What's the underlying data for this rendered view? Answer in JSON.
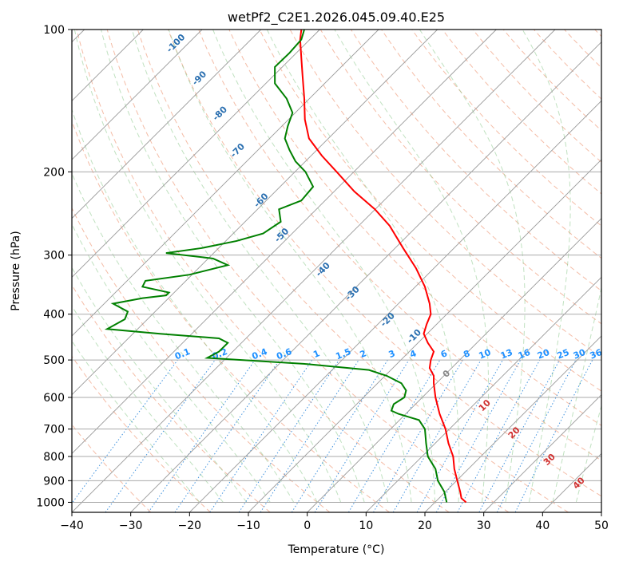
{
  "chart_data": {
    "type": "line",
    "title": "wetPf2_C2E1.2026.045.09.40.E25",
    "xlabel": "Temperature (°C)",
    "ylabel": "Pressure (hPa)",
    "xlim": [
      -40,
      50
    ],
    "ylim": [
      1050,
      100
    ],
    "y_scale": "log",
    "grid": true,
    "x_ticks": [
      -40,
      -30,
      -20,
      -10,
      0,
      10,
      20,
      30,
      40,
      50
    ],
    "y_ticks": [
      100,
      200,
      300,
      400,
      500,
      600,
      700,
      800,
      900,
      1000
    ],
    "series": [
      {
        "color": "#ff0000",
        "points": [
          [
            27,
            1000
          ],
          [
            26.2,
            980
          ],
          [
            26,
            950
          ],
          [
            25.5,
            900
          ],
          [
            25,
            850
          ],
          [
            24.8,
            800
          ],
          [
            24,
            750
          ],
          [
            23.5,
            700
          ],
          [
            22.5,
            650
          ],
          [
            21.8,
            600
          ],
          [
            21.5,
            560
          ],
          [
            21.5,
            540
          ],
          [
            20.8,
            520
          ],
          [
            21,
            500
          ],
          [
            21.5,
            480
          ],
          [
            20.5,
            460
          ],
          [
            19.8,
            440
          ],
          [
            20.3,
            420
          ],
          [
            21,
            400
          ],
          [
            20.8,
            380
          ],
          [
            20,
            350
          ],
          [
            18.5,
            320
          ],
          [
            16.3,
            290
          ],
          [
            14,
            260
          ],
          [
            11.5,
            240
          ],
          [
            8,
            220
          ],
          [
            5,
            200
          ],
          [
            2.5,
            185
          ],
          [
            0.3,
            170
          ],
          [
            -0.4,
            155
          ],
          [
            -0.5,
            140
          ],
          [
            -0.8,
            125
          ],
          [
            -1,
            115
          ],
          [
            -1.2,
            105
          ],
          [
            -1,
            100
          ]
        ]
      },
      {
        "color": "#008000",
        "points": [
          [
            23.7,
            1000
          ],
          [
            23.3,
            950
          ],
          [
            22.2,
            900
          ],
          [
            21.8,
            850
          ],
          [
            20.5,
            800
          ],
          [
            20.2,
            750
          ],
          [
            20,
            700
          ],
          [
            19,
            670
          ],
          [
            15.5,
            650
          ],
          [
            14.3,
            640
          ],
          [
            14.7,
            620
          ],
          [
            16.5,
            600
          ],
          [
            16.8,
            580
          ],
          [
            16,
            560
          ],
          [
            13.5,
            540
          ],
          [
            10.5,
            525
          ],
          [
            0,
            510
          ],
          [
            -17,
            495
          ],
          [
            -15,
            480
          ],
          [
            -13.5,
            460
          ],
          [
            -15,
            450
          ],
          [
            -25,
            440
          ],
          [
            -34,
            430
          ],
          [
            -31,
            410
          ],
          [
            -30.5,
            395
          ],
          [
            -33,
            380
          ],
          [
            -28,
            370
          ],
          [
            -24,
            365
          ],
          [
            -23.5,
            360
          ],
          [
            -28,
            350
          ],
          [
            -27.5,
            340
          ],
          [
            -20,
            330
          ],
          [
            -13.5,
            315
          ],
          [
            -16,
            305
          ],
          [
            -24,
            297
          ],
          [
            -18,
            290
          ],
          [
            -12,
            280
          ],
          [
            -7.5,
            270
          ],
          [
            -4.5,
            255
          ],
          [
            -4.8,
            240
          ],
          [
            -1,
            230
          ],
          [
            1,
            215
          ],
          [
            -0.3,
            200
          ],
          [
            -2,
            190
          ],
          [
            -3,
            180
          ],
          [
            -3.8,
            170
          ],
          [
            -3.3,
            160
          ],
          [
            -2.5,
            150
          ],
          [
            -3.5,
            140
          ],
          [
            -5.5,
            130
          ],
          [
            -5.5,
            120
          ],
          [
            -3,
            112
          ],
          [
            -1,
            105
          ],
          [
            -0.5,
            100
          ]
        ]
      }
    ],
    "isotherm_labels": [
      "0",
      "10",
      "20",
      "30",
      "40"
    ],
    "dry_adiabat_labels": [
      "-100",
      "-90",
      "-80",
      "-70",
      "-60",
      "-50",
      "-40",
      "-30",
      "-20",
      "-10"
    ],
    "mixing_ratio_labels": [
      "0.1",
      "0.2",
      "0.4",
      "0.6",
      "1",
      "1.5",
      "2",
      "3",
      "4",
      "6",
      "8",
      "10",
      "13",
      "16",
      "20",
      "25",
      "30",
      "36"
    ]
  }
}
